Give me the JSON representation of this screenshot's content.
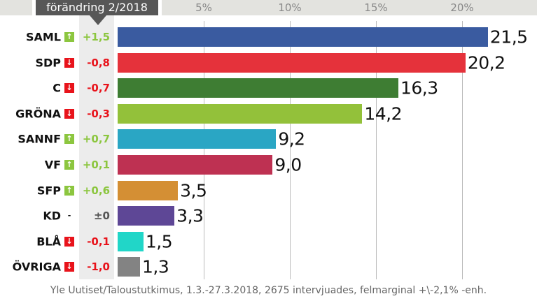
{
  "header": {
    "change_label": "förändring 2/2018"
  },
  "source": "Yle Uutiset/Taloustutkimus, 1.3.-27.3.2018, 2675 intervjuades, felmarginal +\\-2,1% -enh.",
  "chart_data": {
    "type": "bar",
    "orientation": "horizontal",
    "xlim": [
      0,
      22.5
    ],
    "ticks": [
      {
        "v": 5,
        "label": "5%"
      },
      {
        "v": 10,
        "label": "10%"
      },
      {
        "v": 15,
        "label": "15%"
      },
      {
        "v": 20,
        "label": "20%"
      }
    ],
    "grid": true,
    "categories": [
      "SAML",
      "SDP",
      "C",
      "GRÖNA",
      "SANNF",
      "VF",
      "SFP",
      "KD",
      "BLÅ",
      "ÖVRIGA"
    ],
    "values": [
      21.5,
      20.2,
      16.3,
      14.2,
      9.2,
      9.0,
      3.5,
      3.3,
      1.5,
      1.3
    ],
    "value_labels": [
      "21,5",
      "20,2",
      "16,3",
      "14,2",
      "9,2",
      "9,0",
      "3,5",
      "3,3",
      "1,5",
      "1,3"
    ],
    "changes": [
      "+1,5",
      "-0,8",
      "-0,7",
      "-0,3",
      "+0,7",
      "+0,1",
      "+0,6",
      "±0",
      "-0,1",
      "-1,0"
    ],
    "change_direction": [
      "up",
      "down",
      "down",
      "down",
      "up",
      "up",
      "up",
      "none",
      "down",
      "down"
    ],
    "colors": [
      "#3a5ba0",
      "#e5323b",
      "#3e7d33",
      "#93c13a",
      "#2aa6c4",
      "#be3152",
      "#d48f34",
      "#5e4796",
      "#21d6c8",
      "#838383"
    ],
    "up_color": "#8cc63f",
    "down_color": "#e8131b"
  }
}
